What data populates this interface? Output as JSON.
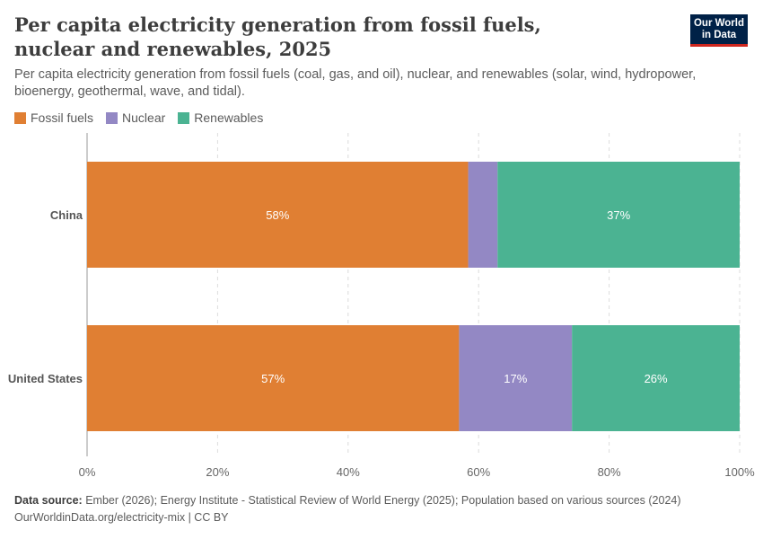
{
  "header": {
    "title": "Per capita electricity generation from fossil fuels, nuclear and renewables, 2025",
    "subtitle": "Per capita electricity generation from fossil fuels (coal, gas, and oil), nuclear, and renewables (solar, wind, hydropower, bioenergy, geothermal, wave, and tidal).",
    "logo_line1": "Our World",
    "logo_line2": "in Data"
  },
  "legend": [
    {
      "label": "Fossil fuels",
      "color": "#e07f33"
    },
    {
      "label": "Nuclear",
      "color": "#9388c4"
    },
    {
      "label": "Renewables",
      "color": "#4bb392"
    }
  ],
  "chart_data": {
    "type": "bar",
    "orientation": "horizontal",
    "stacked": true,
    "categories": [
      "China",
      "United States"
    ],
    "series": [
      {
        "name": "Fossil fuels",
        "color": "#e07f33",
        "values": [
          58.4,
          57.0
        ],
        "labels": [
          "58%",
          "57%"
        ]
      },
      {
        "name": "Nuclear",
        "color": "#9388c4",
        "values": [
          4.5,
          17.3
        ],
        "labels": [
          "",
          "17%"
        ]
      },
      {
        "name": "Renewables",
        "color": "#4bb392",
        "values": [
          37.1,
          25.7
        ],
        "labels": [
          "37%",
          "26%"
        ]
      }
    ],
    "xlim": [
      0,
      100
    ],
    "x_ticks": [
      0,
      20,
      40,
      60,
      80,
      100
    ],
    "x_tick_labels": [
      "0%",
      "20%",
      "40%",
      "60%",
      "80%",
      "100%"
    ],
    "grid": "vertical dashed",
    "legend_position": "top-left"
  },
  "footer": {
    "source_label": "Data source:",
    "source_text": "Ember (2026); Energy Institute - Statistical Review of World Energy (2025); Population based on various sources (2024)",
    "url_line": "OurWorldinData.org/electricity-mix | CC BY"
  }
}
